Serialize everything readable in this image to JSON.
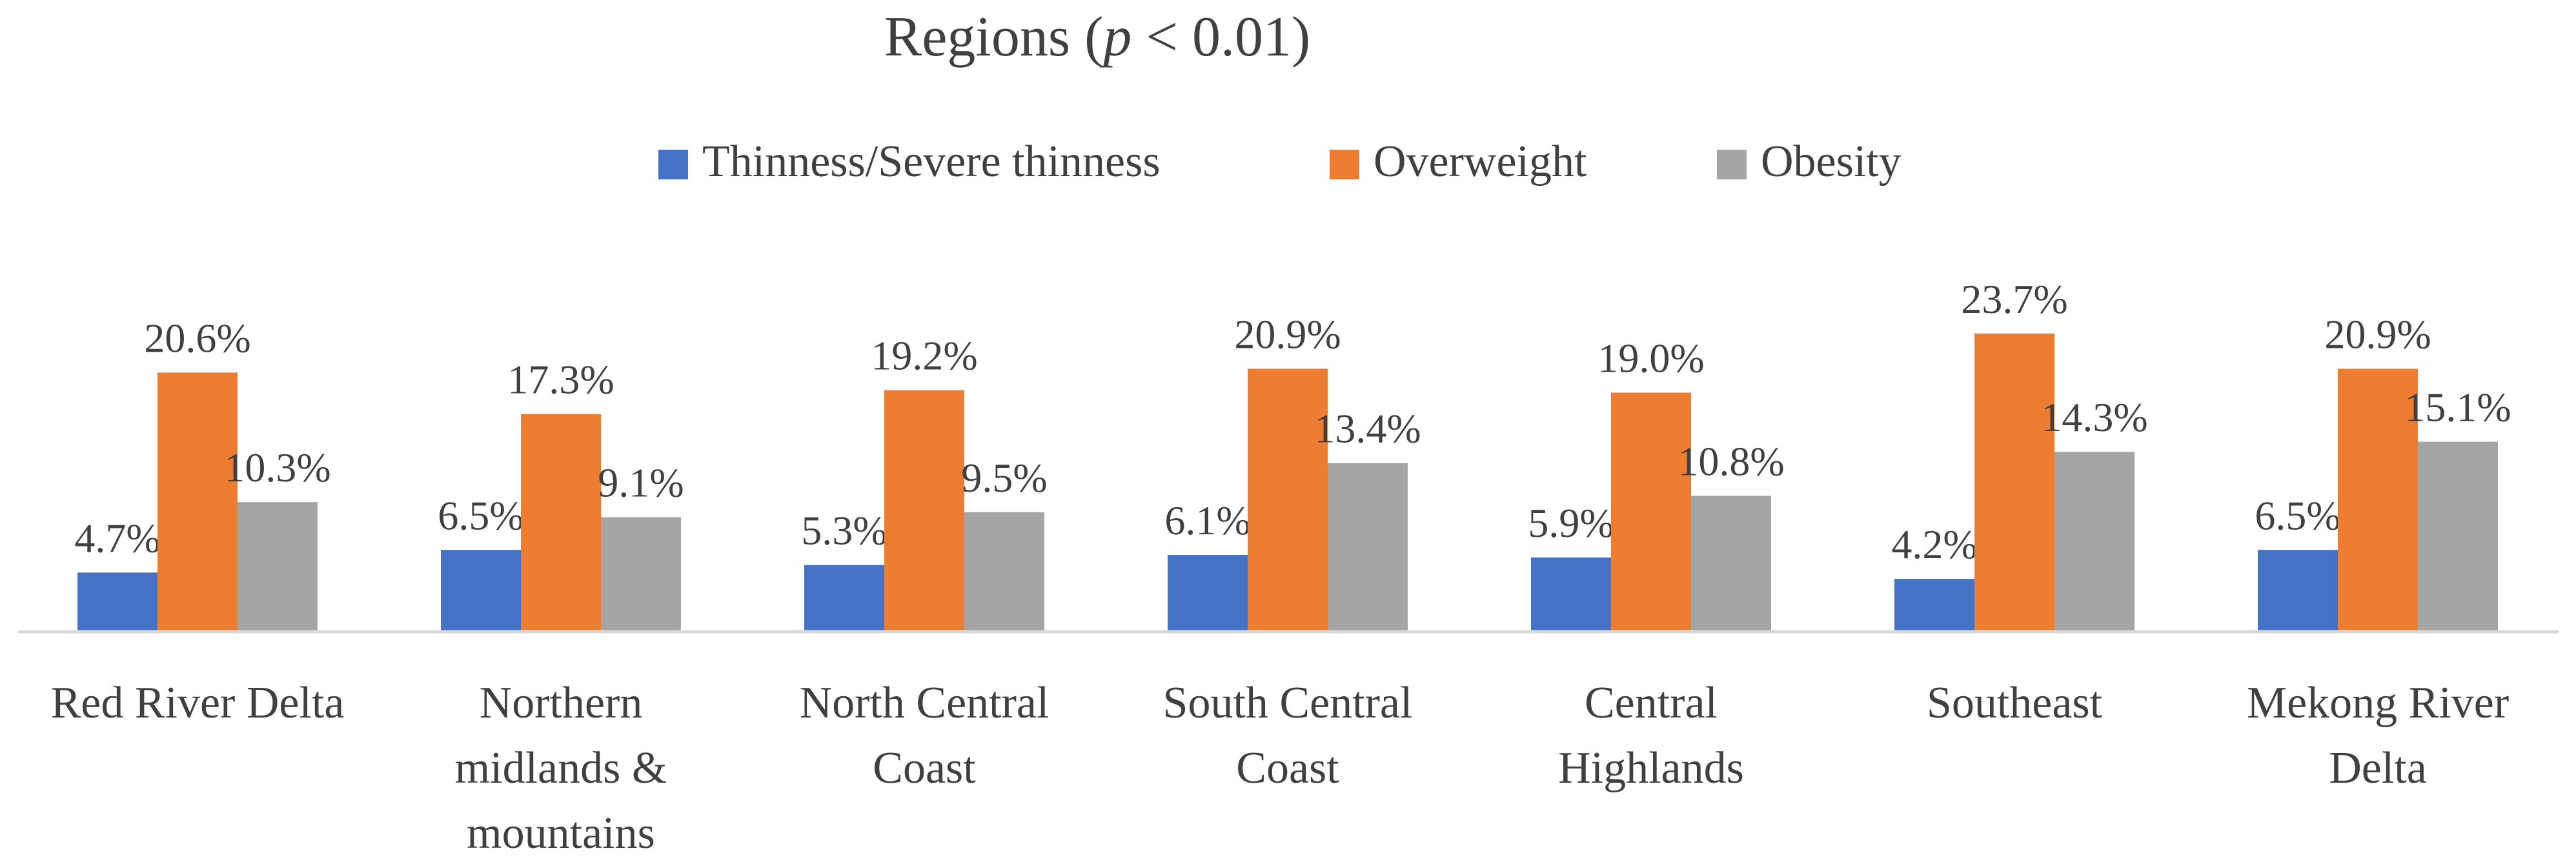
{
  "chart_data": {
    "type": "bar",
    "title_prefix": "Regions (",
    "title_italic": "p",
    "title_suffix": " < 0.01)",
    "categories": [
      [
        "Red River Delta"
      ],
      [
        "Northern",
        "midlands &",
        "mountains"
      ],
      [
        "North Central",
        "Coast"
      ],
      [
        "South Central",
        "Coast"
      ],
      [
        "Central",
        "Highlands"
      ],
      [
        "Southeast"
      ],
      [
        "Mekong River",
        "Delta"
      ]
    ],
    "series": [
      {
        "name": "Thinness/Severe thinness",
        "color": "#4472C4",
        "values": [
          4.7,
          6.5,
          5.3,
          6.1,
          5.9,
          4.2,
          6.5
        ]
      },
      {
        "name": "Overweight",
        "color": "#ED7D31",
        "values": [
          20.6,
          17.3,
          19.2,
          20.9,
          19.0,
          23.7,
          20.9
        ]
      },
      {
        "name": "Obesity",
        "color": "#A5A5A5",
        "values": [
          10.3,
          9.1,
          9.5,
          13.4,
          10.8,
          14.3,
          15.1
        ]
      }
    ],
    "value_suffix": "%",
    "ylim": [
      0,
      25
    ],
    "grid": false,
    "legend_position": "top"
  }
}
